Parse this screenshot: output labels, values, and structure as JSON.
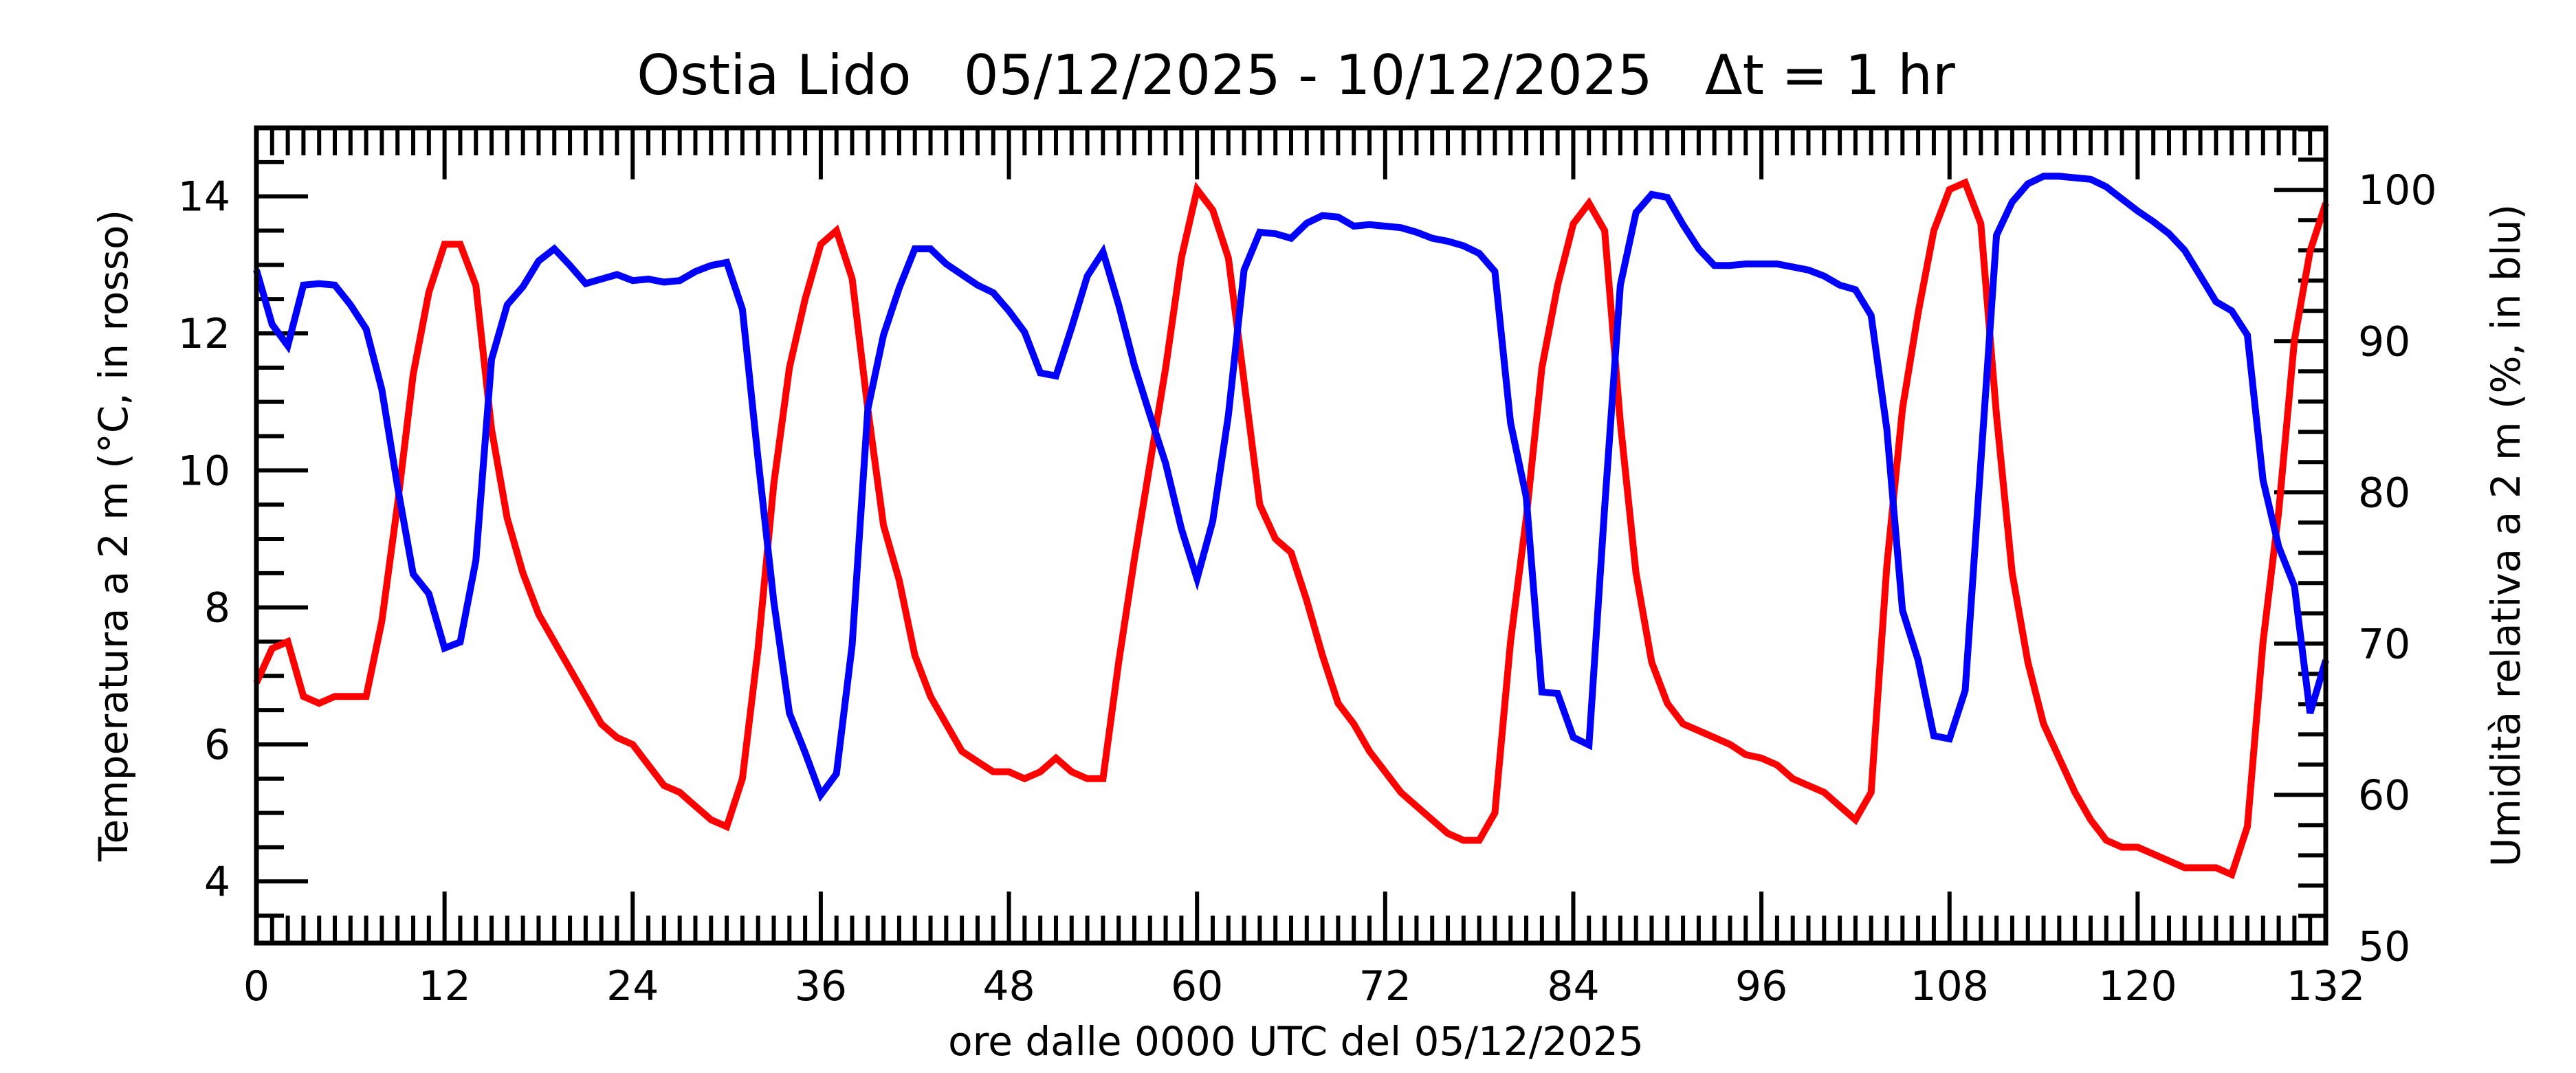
{
  "chart_data": {
    "type": "line",
    "title": "Ostia Lido   05/12/2025 - 10/12/2025   Δt = 1 hr",
    "xlabel": "ore dalle 0000 UTC del 05/12/2025",
    "ylabel": "Temperatura a 2 m (°C, in rosso)",
    "ylabel_right": "Umidità relativa a 2 m (%, in blu)",
    "xlim": [
      0,
      132
    ],
    "ylim": [
      3.1,
      15.0
    ],
    "ylim_right": [
      50.2,
      104.1
    ],
    "x_ticks": [
      0,
      12,
      24,
      36,
      48,
      60,
      72,
      84,
      96,
      108,
      120,
      132
    ],
    "x_tick_labels": [
      "0",
      "12",
      "24",
      "36",
      "48",
      "60",
      "72",
      "84",
      "96",
      "108",
      "120",
      "132"
    ],
    "y_ticks": [
      4,
      6,
      8,
      10,
      12,
      14
    ],
    "y_tick_labels": [
      "4",
      "6",
      "8",
      "10",
      "12",
      "14"
    ],
    "y_right_ticks": [
      50,
      60,
      70,
      80,
      90,
      100
    ],
    "y_right_tick_labels": [
      "50",
      "60",
      "70",
      "80",
      "90",
      "100"
    ],
    "grid": false,
    "series": [
      {
        "name": "Temperatura a 2 m (°C)",
        "axis": "left",
        "color": "#ff0000",
        "values": [
          6.9,
          7.4,
          7.5,
          6.7,
          6.6,
          6.7,
          6.7,
          6.7,
          7.8,
          9.5,
          11.4,
          12.6,
          13.3,
          13.3,
          12.7,
          10.6,
          9.3,
          8.5,
          7.9,
          7.5,
          7.1,
          6.7,
          6.3,
          6.1,
          6.0,
          5.7,
          5.4,
          5.3,
          5.1,
          4.9,
          4.8,
          5.5,
          7.4,
          9.8,
          11.5,
          12.5,
          13.3,
          13.5,
          12.8,
          10.9,
          9.2,
          8.4,
          7.3,
          6.7,
          6.3,
          5.9,
          5.75,
          5.6,
          5.6,
          5.5,
          5.6,
          5.8,
          5.6,
          5.5,
          5.5,
          7.2,
          8.7,
          10.1,
          11.5,
          13.1,
          14.1,
          13.8,
          13.1,
          11.3,
          9.5,
          9.0,
          8.8,
          8.1,
          7.3,
          6.6,
          6.3,
          5.9,
          5.6,
          5.3,
          5.1,
          4.9,
          4.7,
          4.6,
          4.6,
          5.0,
          7.5,
          9.3,
          11.5,
          12.7,
          13.6,
          13.9,
          13.5,
          10.7,
          8.5,
          7.2,
          6.6,
          6.3,
          6.2,
          6.1,
          6.0,
          5.85,
          5.8,
          5.7,
          5.5,
          5.4,
          5.3,
          5.1,
          4.9,
          5.3,
          8.6,
          10.9,
          12.3,
          13.5,
          14.1,
          14.2,
          13.6,
          10.8,
          8.5,
          7.2,
          6.3,
          5.8,
          5.3,
          4.9,
          4.6,
          4.5,
          4.5,
          4.4,
          4.3,
          4.2,
          4.2,
          4.2,
          4.1,
          4.8,
          7.5,
          9.4,
          11.9,
          13.2,
          13.9
        ]
      },
      {
        "name": "Umidità relativa a 2 m (%)",
        "axis": "right",
        "color": "#0000ff",
        "values": [
          94.7,
          91.1,
          89.7,
          93.7,
          93.8,
          93.7,
          92.4,
          90.8,
          86.8,
          80.4,
          74.6,
          73.3,
          69.7,
          70.1,
          75.5,
          88.8,
          92.4,
          93.6,
          95.3,
          96.1,
          95.0,
          93.8,
          94.1,
          94.4,
          94.0,
          94.1,
          93.9,
          94.0,
          94.6,
          95.0,
          95.2,
          92.1,
          82.2,
          72.8,
          65.4,
          62.8,
          60.0,
          61.4,
          69.9,
          85.5,
          90.4,
          93.5,
          96.1,
          96.1,
          95.1,
          94.4,
          93.7,
          93.2,
          92.0,
          90.6,
          87.9,
          87.7,
          90.9,
          94.3,
          95.9,
          92.4,
          88.4,
          85.1,
          81.9,
          77.6,
          74.3,
          78.1,
          85.1,
          94.7,
          97.2,
          97.1,
          96.8,
          97.8,
          98.3,
          98.2,
          97.6,
          97.7,
          97.6,
          97.5,
          97.2,
          96.8,
          96.6,
          96.3,
          95.8,
          94.6,
          84.6,
          79.7,
          66.8,
          66.7,
          63.8,
          63.3,
          79.0,
          93.7,
          98.5,
          99.7,
          99.5,
          97.7,
          96.1,
          95.0,
          95.0,
          95.1,
          95.1,
          95.1,
          94.9,
          94.7,
          94.3,
          93.7,
          93.4,
          91.7,
          84.2,
          72.2,
          68.9,
          63.9,
          63.7,
          66.9,
          82.0,
          97.0,
          99.2,
          100.4,
          100.9,
          100.9,
          100.8,
          100.7,
          100.2,
          99.4,
          98.6,
          97.9,
          97.1,
          96.0,
          94.3,
          92.6,
          92.0,
          90.4,
          80.8,
          76.4,
          73.8,
          65.4,
          68.9
        ]
      }
    ]
  }
}
